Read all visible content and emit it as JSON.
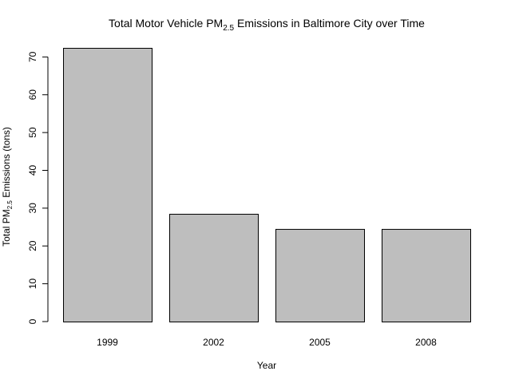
{
  "chart_data": {
    "type": "bar",
    "title": {
      "before": "Total Motor Vehicle PM",
      "subscript": "2.5",
      "after": " Emissions in Baltimore City over Time"
    },
    "xlabel": "Year",
    "ylabel": {
      "before": "Total PM",
      "subscript": "2.5",
      "after": " Emissions (tons)"
    },
    "categories": [
      "1999",
      "2002",
      "2005",
      "2008"
    ],
    "values": [
      72.4,
      28.5,
      24.5,
      24.5
    ],
    "ylim": [
      0,
      72.4
    ],
    "yticks": [
      0,
      10,
      20,
      30,
      40,
      50,
      60,
      70
    ],
    "grid": false,
    "legend": "none",
    "bar_color": "#bebebe",
    "edge_color": "#000000"
  }
}
